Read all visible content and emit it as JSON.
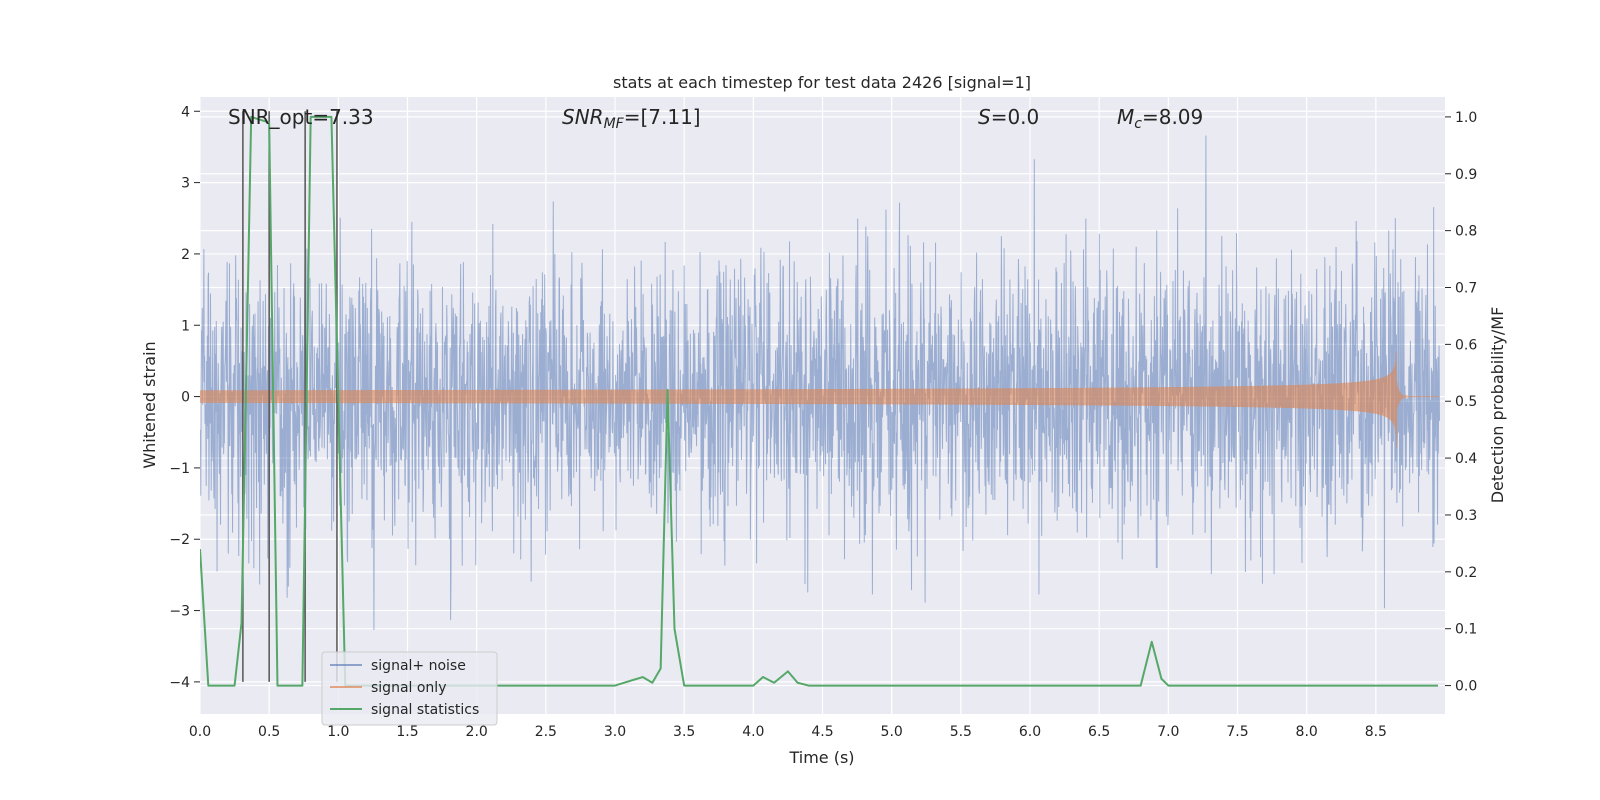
{
  "chart_data": {
    "type": "line",
    "title": "stats at each timestep for test data 2426 [signal=1]",
    "xlabel": "Time (s)",
    "ylabel_left": "Whitened strain",
    "ylabel_right": "Detection probability/MF",
    "xlim": [
      0.0,
      9.0
    ],
    "ylim_left": [
      -4.45,
      4.2
    ],
    "ylim_right": [
      -0.05,
      1.035
    ],
    "x_ticks": [
      "0.0",
      "0.5",
      "1.0",
      "1.5",
      "2.0",
      "2.5",
      "3.0",
      "3.5",
      "4.0",
      "4.5",
      "5.0",
      "5.5",
      "6.0",
      "6.5",
      "7.0",
      "7.5",
      "8.0",
      "8.5"
    ],
    "y_ticks_left": [
      "4",
      "3",
      "2",
      "1",
      "0",
      "−1",
      "−2",
      "−3",
      "−4"
    ],
    "y_ticks_right": [
      "1.0",
      "0.9",
      "0.8",
      "0.7",
      "0.6",
      "0.5",
      "0.4",
      "0.3",
      "0.2",
      "0.1",
      "0.0"
    ],
    "grid": true,
    "annotations": [
      {
        "label": "SNR_opt",
        "value": "=7.33"
      },
      {
        "label": "SNR",
        "sub": "MF",
        "value": "=[7.11]"
      },
      {
        "label": "S",
        "value": "=0.0"
      },
      {
        "label": "M",
        "sub": "c",
        "value": "=8.09"
      }
    ],
    "legend": {
      "position": "lower-left",
      "entries": [
        "signal+ noise",
        "signal only",
        "signal statistics"
      ]
    },
    "series": [
      {
        "name": "signal+ noise",
        "axis": "left",
        "color": "#4c72b0",
        "description": "whitened strain, approx. gaussian noise, std ~0.95, range about -3.4 to 3.8",
        "noise_std": 0.95
      },
      {
        "name": "signal only",
        "axis": "left",
        "color": "#dd8452",
        "description": "chirp signal growing in amplitude, peak near t=8.65 s",
        "merger_time": 8.65,
        "peak_amplitude": 0.75
      },
      {
        "name": "signal statistics",
        "axis": "right",
        "color": "#55a868",
        "x": [
          0.0,
          0.06,
          0.25,
          0.3,
          0.37,
          0.5,
          0.56,
          0.74,
          0.8,
          0.95,
          1.05,
          1.1,
          3.0,
          3.2,
          3.27,
          3.33,
          3.38,
          3.43,
          3.5,
          4.0,
          4.07,
          4.15,
          4.25,
          4.32,
          4.4,
          6.8,
          6.88,
          6.95,
          7.0,
          8.95
        ],
        "y": [
          0.24,
          0.0,
          0.0,
          0.11,
          1.0,
          0.99,
          0.0,
          0.0,
          1.0,
          1.0,
          0.0,
          0.0,
          0.0,
          0.015,
          0.005,
          0.03,
          0.52,
          0.1,
          0.0,
          0.0,
          0.015,
          0.005,
          0.025,
          0.005,
          0.0,
          0.0,
          0.077,
          0.012,
          0.0,
          0.0
        ]
      }
    ],
    "vertical_markers": {
      "color": "#555555",
      "description": "dark vertical lines on the left axis",
      "lines": [
        {
          "x": 0.31,
          "y_from": -4.0,
          "y_to": 4.0
        },
        {
          "x": 0.5,
          "y_from": -4.0,
          "y_to": 4.0
        },
        {
          "x": 0.76,
          "y_from": -4.0,
          "y_to": 4.0
        },
        {
          "x": 0.99,
          "y_from": -4.0,
          "y_to": 4.0
        }
      ]
    }
  }
}
